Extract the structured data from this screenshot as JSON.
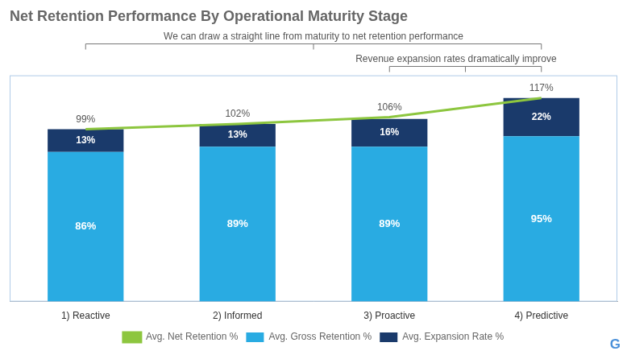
{
  "chart_data": {
    "type": "bar",
    "title": "Net Retention Performance By Operational Maturity Stage",
    "categories": [
      "1) Reactive",
      "2) Informed",
      "3) Proactive",
      "4) Predictive"
    ],
    "series": [
      {
        "name": "Avg. Gross Retention %",
        "type": "bar",
        "color": "#29abe2",
        "values": [
          86,
          89,
          89,
          95
        ],
        "value_labels": [
          "86%",
          "89%",
          "89%",
          "95%"
        ]
      },
      {
        "name": "Avg. Expansion Rate %",
        "type": "bar",
        "color": "#1a3a6b",
        "values": [
          13,
          13,
          16,
          22
        ],
        "value_labels": [
          "13%",
          "13%",
          "16%",
          "22%"
        ]
      },
      {
        "name": "Avg. Net Retention %",
        "type": "line",
        "color": "#8dc63f",
        "values": [
          99,
          102,
          106,
          117
        ],
        "value_labels": [
          "99%",
          "102%",
          "106%",
          "117%"
        ]
      }
    ],
    "ylim": [
      0,
      130
    ],
    "stacked": true,
    "data_labels": true,
    "tick_labels": "x",
    "grid": false,
    "legend": "bottom",
    "annotations": [
      "We can draw a straight line from maturity to net retention performance",
      "Revenue expansion rates dramatically improve",
      "G"
    ]
  }
}
